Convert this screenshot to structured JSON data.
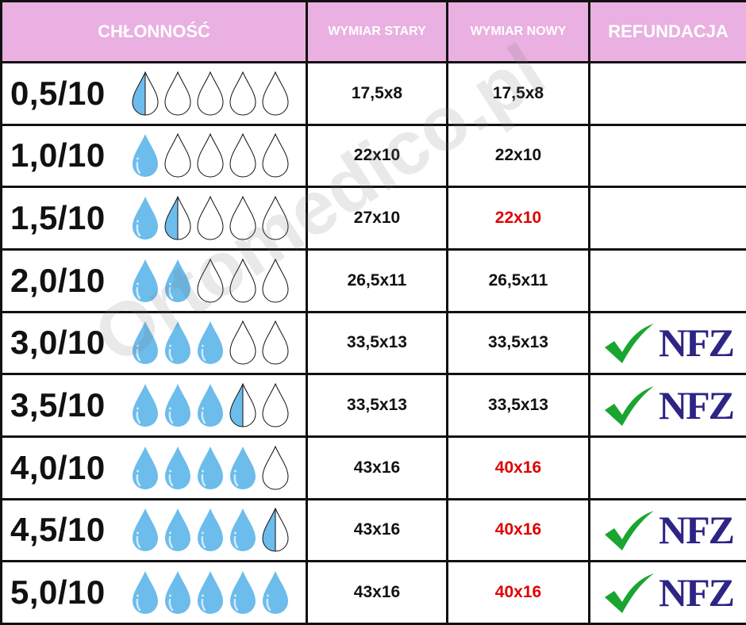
{
  "header": {
    "absorbency": "CHŁONNOŚĆ",
    "old_size": "WYMIAR STARY",
    "new_size": "WYMIAR NOWY",
    "refund": "REFUNDACJA"
  },
  "colors": {
    "header_bg": "#e9b0e1",
    "drop": "#6cbcec",
    "changed": "#e00000",
    "nfz": "#2d2585",
    "check": "#1aa531"
  },
  "refund_logo_text": "NFZ",
  "watermark": "Ortomedico.pl",
  "rows": [
    {
      "level": "0,5/10",
      "drops": 0.5,
      "old": "17,5x8",
      "new": "17,5x8",
      "new_changed": false,
      "refund": false
    },
    {
      "level": "1,0/10",
      "drops": 1,
      "old": "22x10",
      "new": "22x10",
      "new_changed": false,
      "refund": false
    },
    {
      "level": "1,5/10",
      "drops": 1.5,
      "old": "27x10",
      "new": "22x10",
      "new_changed": true,
      "refund": false
    },
    {
      "level": "2,0/10",
      "drops": 2,
      "old": "26,5x11",
      "new": "26,5x11",
      "new_changed": false,
      "refund": false
    },
    {
      "level": "3,0/10",
      "drops": 3,
      "old": "33,5x13",
      "new": "33,5x13",
      "new_changed": false,
      "refund": true
    },
    {
      "level": "3,5/10",
      "drops": 3.5,
      "old": "33,5x13",
      "new": "33,5x13",
      "new_changed": false,
      "refund": true
    },
    {
      "level": "4,0/10",
      "drops": 4,
      "old": "43x16",
      "new": "40x16",
      "new_changed": true,
      "refund": false
    },
    {
      "level": "4,5/10",
      "drops": 4.5,
      "old": "43x16",
      "new": "40x16",
      "new_changed": true,
      "refund": true
    },
    {
      "level": "5,0/10",
      "drops": 5,
      "old": "43x16",
      "new": "40x16",
      "new_changed": true,
      "refund": true
    }
  ]
}
